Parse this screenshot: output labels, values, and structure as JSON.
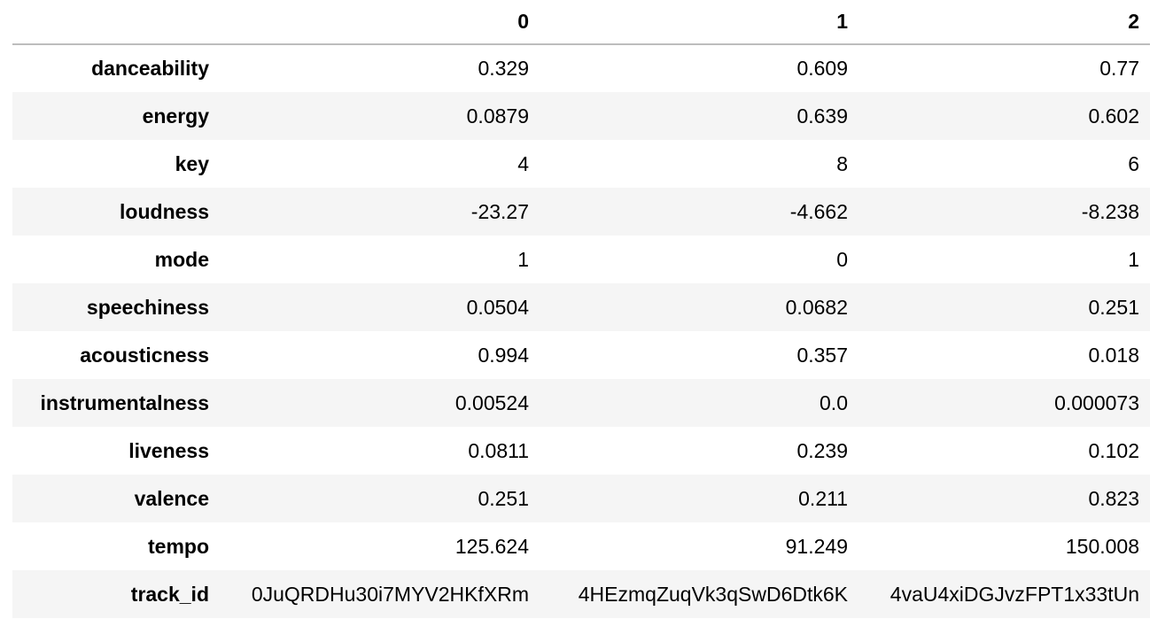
{
  "table": {
    "index_header": "",
    "columns": [
      "0",
      "1",
      "2"
    ],
    "rows": [
      {
        "label": "danceability",
        "values": [
          "0.329",
          "0.609",
          "0.77"
        ]
      },
      {
        "label": "energy",
        "values": [
          "0.0879",
          "0.639",
          "0.602"
        ]
      },
      {
        "label": "key",
        "values": [
          "4",
          "8",
          "6"
        ]
      },
      {
        "label": "loudness",
        "values": [
          "-23.27",
          "-4.662",
          "-8.238"
        ]
      },
      {
        "label": "mode",
        "values": [
          "1",
          "0",
          "1"
        ]
      },
      {
        "label": "speechiness",
        "values": [
          "0.0504",
          "0.0682",
          "0.251"
        ]
      },
      {
        "label": "acousticness",
        "values": [
          "0.994",
          "0.357",
          "0.018"
        ]
      },
      {
        "label": "instrumentalness",
        "values": [
          "0.00524",
          "0.0",
          "0.000073"
        ]
      },
      {
        "label": "liveness",
        "values": [
          "0.0811",
          "0.239",
          "0.102"
        ]
      },
      {
        "label": "valence",
        "values": [
          "0.251",
          "0.211",
          "0.823"
        ]
      },
      {
        "label": "tempo",
        "values": [
          "125.624",
          "91.249",
          "150.008"
        ]
      },
      {
        "label": "track_id",
        "values": [
          "0JuQRDHu30i7MYV2HKfXRm",
          "4HEzmqZuqVk3qSwD6Dtk6K",
          "4vaU4xiDGJvzFPT1x33tUn"
        ]
      }
    ]
  },
  "colors": {
    "header_rule": "#bdbdbd",
    "stripe": "#f5f5f5",
    "text": "#000000"
  }
}
